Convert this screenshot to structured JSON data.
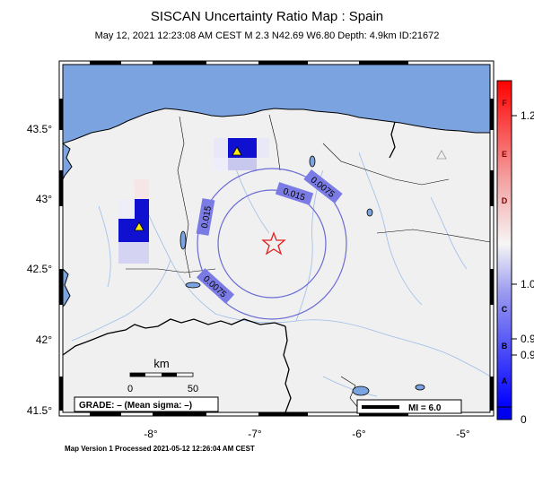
{
  "title": "SISCAN Uncertainty Ratio Map : Spain",
  "subtitle": "May 12, 2021 12:23:08 AM CEST   M 2.3   N42.69 W6.80   Depth: 4.9km   ID:21672",
  "footer": "Map Version 1 Processed 2021-05-12 12:26:04 AM CEST",
  "axes": {
    "lat_labels": [
      "43.5°",
      "43°",
      "42.5°",
      "42°",
      "41.5°"
    ],
    "lon_labels": [
      "-8°",
      "-7°",
      "-6°",
      "-5°"
    ]
  },
  "contours": [
    "0.015",
    "0.015",
    "0.0075",
    "0.0075"
  ],
  "scale_bar": {
    "unit": "km",
    "start": "0",
    "end": "50"
  },
  "grade_box": "GRADE: – (Mean sigma: –)",
  "mi_legend": "MI = 6.0",
  "colorbar": {
    "letters": [
      "F",
      "E",
      "D",
      "C",
      "B",
      "A"
    ],
    "values": [
      "1.2",
      "1.0",
      "0.9",
      "0.9",
      "0"
    ]
  },
  "colors": {
    "sea": "#7ba3e0",
    "land": "#f0f0f0",
    "contour": "#6a6ad6",
    "epicenter": "#e02020",
    "station_high": "#1010d0",
    "station_marker": "#ffee00"
  }
}
